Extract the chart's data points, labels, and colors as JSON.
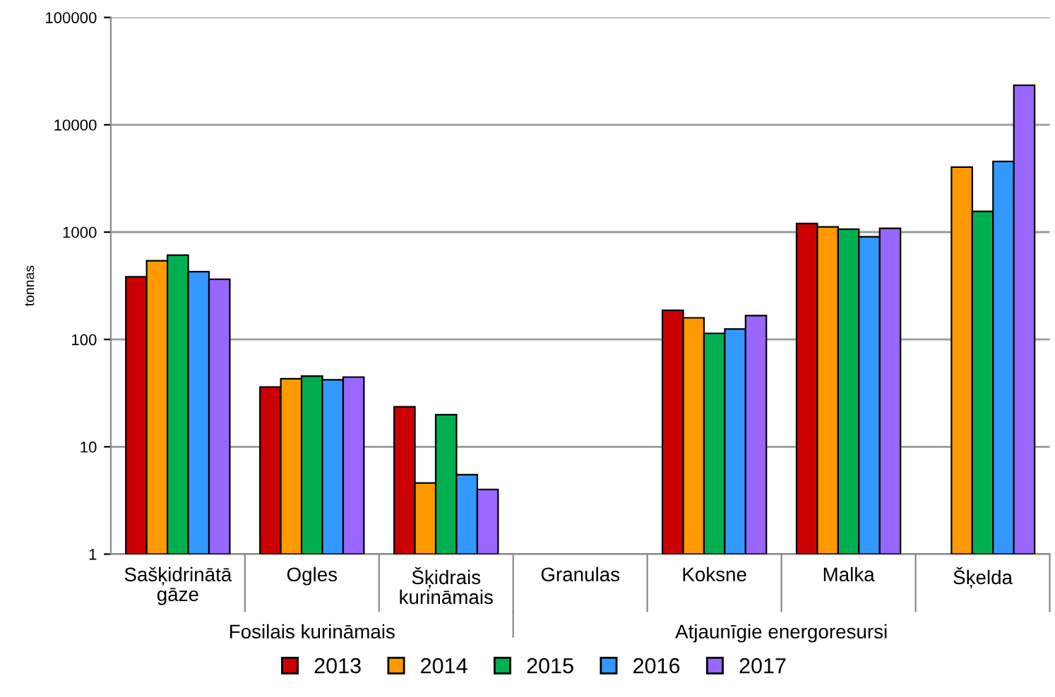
{
  "chart_data": {
    "type": "bar",
    "ylabel": "tonnas",
    "log": "y",
    "ylim": [
      1,
      100000
    ],
    "yticks": [
      1,
      10,
      100,
      1000,
      10000,
      100000
    ],
    "grid": "y",
    "legend": "bottom",
    "categories": [
      "Sašķidrinātā\ngāze",
      "Ogles",
      "Šķidrais\nkurināmais",
      "Granulas",
      "Koksne",
      "Malka",
      "Šķelda"
    ],
    "annotations": [
      "Fosilais kurināmais",
      "Atjaunīgie energoresursi"
    ],
    "series": [
      {
        "name": "2013",
        "color": "#cc0000",
        "values": [
          383,
          36,
          23.6,
          null,
          187,
          1200,
          null
        ]
      },
      {
        "name": "2014",
        "color": "#ff9900",
        "values": [
          540,
          43,
          4.6,
          null,
          159,
          1117,
          4030
        ]
      },
      {
        "name": "2015",
        "color": "#00b050",
        "values": [
          610,
          45.5,
          19.9,
          null,
          114,
          1063,
          1560
        ]
      },
      {
        "name": "2016",
        "color": "#3399ff",
        "values": [
          428,
          42,
          5.5,
          null,
          125,
          904,
          4550
        ]
      },
      {
        "name": "2017",
        "color": "#9966ff",
        "values": [
          364,
          44.6,
          4.0,
          null,
          167,
          1084,
          23350
        ]
      }
    ]
  }
}
